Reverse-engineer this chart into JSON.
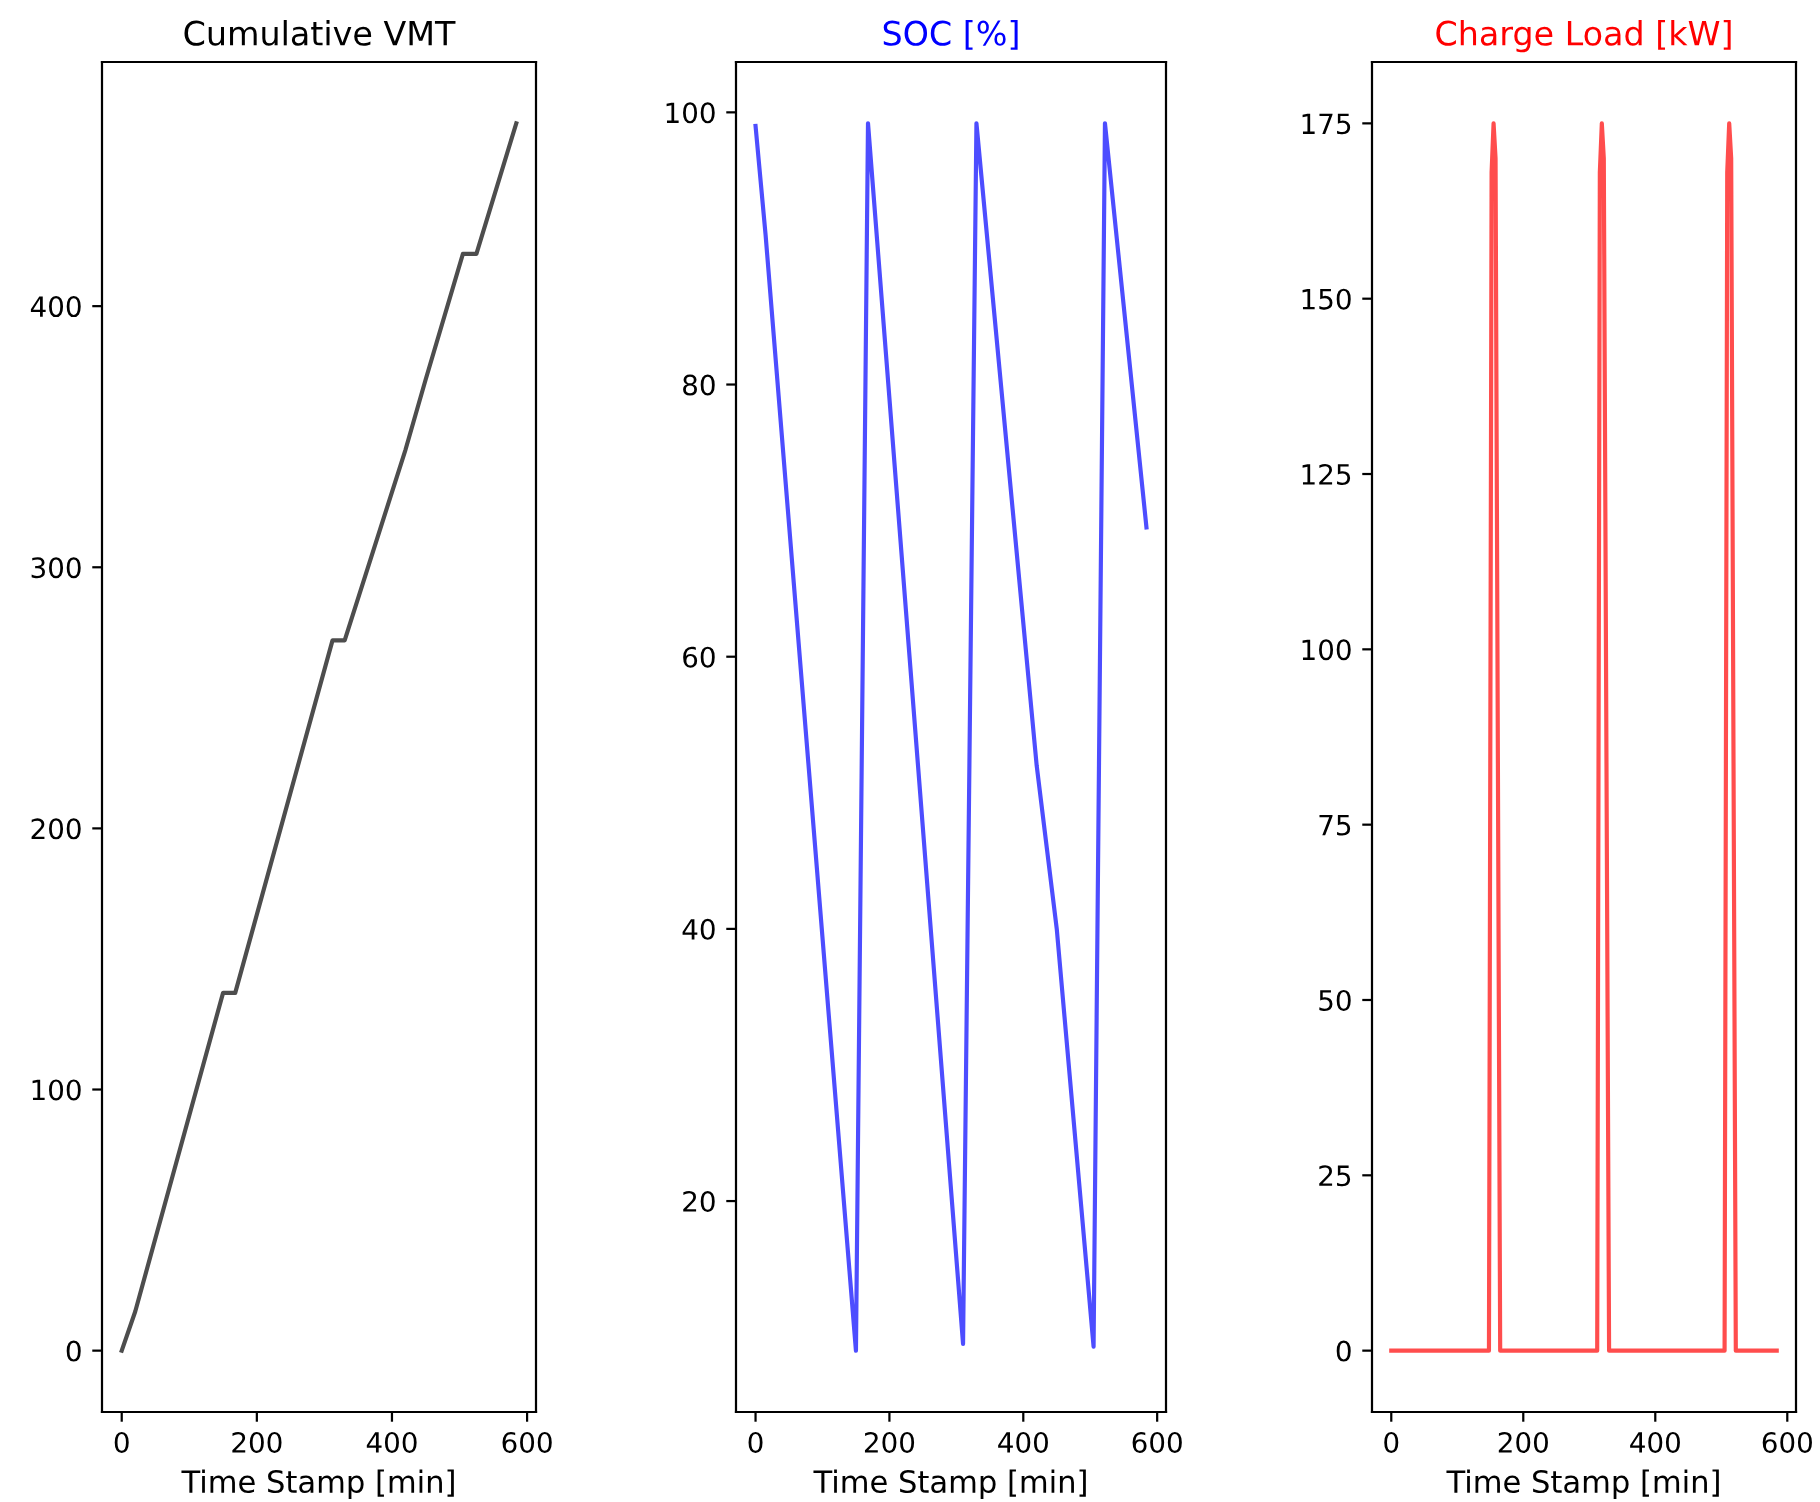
{
  "chart_data": [
    {
      "type": "line",
      "title": "Cumulative VMT",
      "xlabel": "Time Stamp [min]",
      "xlim": [
        -29.2,
        613.2
      ],
      "xticks": [
        0,
        200,
        400,
        600
      ],
      "ylim": [
        -23.5,
        493.5
      ],
      "yticks": [
        0,
        100,
        200,
        300,
        400
      ],
      "series": [
        {
          "color": "#4d4d4d",
          "x": [
            0,
            20,
            150,
            168,
            312,
            330,
            420,
            450,
            505,
            525,
            584
          ],
          "values": [
            0,
            15,
            137,
            137,
            272,
            272,
            345,
            372,
            420,
            420,
            470
          ]
        }
      ]
    },
    {
      "type": "line",
      "title": "SOC [%]",
      "xlabel": "Time Stamp [min]",
      "xlim": [
        -29.2,
        613.2
      ],
      "xticks": [
        0,
        200,
        400,
        600
      ],
      "ylim": [
        4.5,
        103.7
      ],
      "yticks": [
        20,
        40,
        60,
        80,
        100
      ],
      "series": [
        {
          "color": "#4d4dff",
          "x": [
            0,
            15,
            150,
            168,
            310,
            330,
            420,
            450,
            505,
            522,
            584
          ],
          "values": [
            99,
            91,
            9,
            99.2,
            9.5,
            99.2,
            52,
            40,
            9.3,
            99.2,
            69.5
          ]
        }
      ]
    },
    {
      "type": "line",
      "title": "Charge Load [kW]",
      "xlabel": "Time Stamp [min]",
      "xlim": [
        -29.2,
        613.2
      ],
      "xticks": [
        0,
        200,
        400,
        600
      ],
      "ylim": [
        -8.75,
        183.75
      ],
      "yticks": [
        0,
        25,
        50,
        75,
        100,
        125,
        150,
        175
      ],
      "series": [
        {
          "color": "#ff4d4d",
          "x": [
            0,
            148,
            152,
            155,
            158,
            165,
            312,
            316,
            319,
            322,
            330,
            505,
            509,
            512,
            515,
            522,
            584
          ],
          "values": [
            0,
            0,
            168,
            175,
            170,
            0,
            0,
            168,
            175,
            170,
            0,
            0,
            168,
            175,
            170,
            0,
            0
          ]
        }
      ]
    }
  ]
}
